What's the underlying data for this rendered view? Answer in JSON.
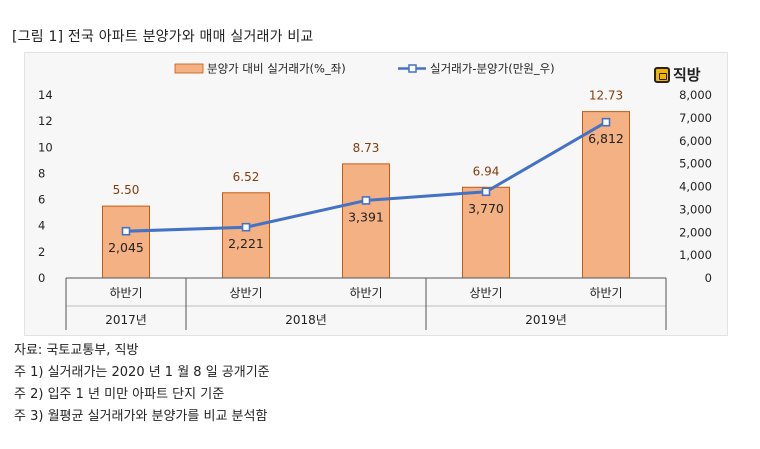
{
  "title": "[그림 1] 전국 아파트 분양가와 매매 실거래가 비교",
  "logo": {
    "text": "직방",
    "icon": "house-logo-icon"
  },
  "chart_data": {
    "type": "bar",
    "categories": [
      "하반기",
      "상반기",
      "하반기",
      "상반기",
      "하반기"
    ],
    "year_groups": [
      {
        "label": "2017년",
        "span": 1
      },
      {
        "label": "2018년",
        "span": 2
      },
      {
        "label": "2019년",
        "span": 2
      }
    ],
    "series": [
      {
        "name": "분양가 대비 실거래가(%_좌)",
        "type": "bar",
        "axis": "left",
        "color": "#f4b183",
        "values": [
          5.5,
          6.52,
          8.73,
          6.94,
          12.73
        ],
        "labels": [
          "5.50",
          "6.52",
          "8.73",
          "6.94",
          "12.73"
        ]
      },
      {
        "name": "실거래가-분양가(만원_우)",
        "type": "line",
        "axis": "right",
        "color": "#4472c4",
        "values": [
          2045,
          2221,
          3391,
          3770,
          6812
        ],
        "labels": [
          "2,045",
          "2,221",
          "3,391",
          "3,770",
          "6,812"
        ]
      }
    ],
    "y_left": {
      "min": 0,
      "max": 14,
      "ticks": [
        "0",
        "2",
        "4",
        "6",
        "8",
        "10",
        "12",
        "14"
      ]
    },
    "y_right": {
      "min": 0,
      "max": 8000,
      "ticks": [
        "0",
        "1,000",
        "2,000",
        "3,000",
        "4,000",
        "5,000",
        "6,000",
        "7,000",
        "8,000"
      ]
    },
    "legend_position": "top-center",
    "grid": false
  },
  "notes": [
    "자료: 국토교통부, 직방",
    "주 1) 실거래가는 2020 년 1 월 8 일 공개기준",
    "주 2) 입주 1 년 미만 아파트 단지 기준",
    "주 3) 월평균 실거래가와 분양가를 비교 분석함"
  ]
}
